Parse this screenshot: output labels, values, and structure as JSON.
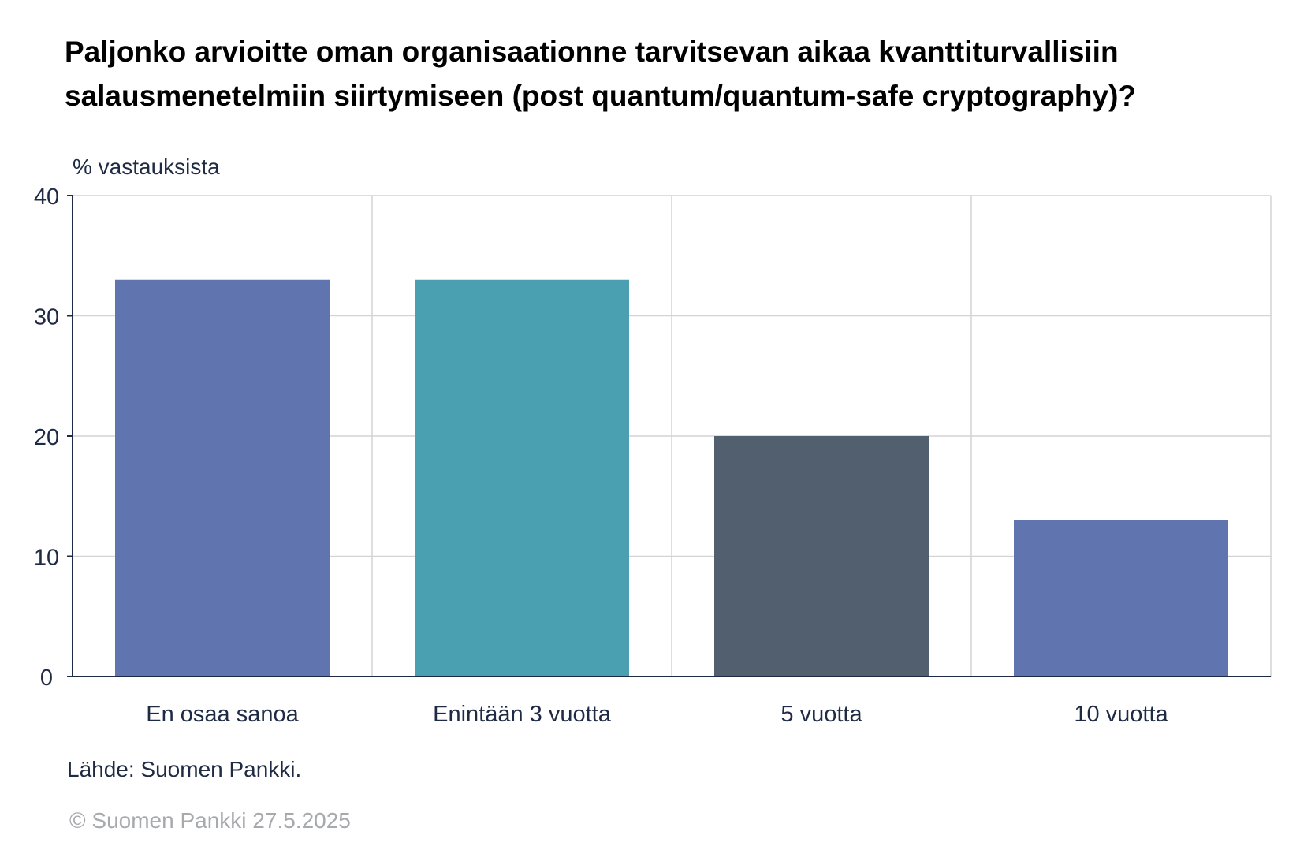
{
  "title_lines": [
    "Paljonko arvioitte oman organisaationne tarvitsevan aikaa kvanttiturvallisiin",
    "salausmenetelmiin siirtymiseen (post quantum/quantum-safe cryptography)?"
  ],
  "unit_label": "% vastauksista",
  "source": "Lähde: Suomen Pankki.",
  "copyright": "© Suomen Pankki 27.5.2025",
  "chart_data": {
    "type": "bar",
    "title": "Paljonko arvioitte oman organisaationne tarvitsevan aikaa kvanttiturvallisiin salausmenetelmiin siirtymiseen (post quantum/quantum-safe cryptography)?",
    "ylabel": "% vastauksista",
    "xlabel": "",
    "categories": [
      "En osaa sanoa",
      "Enintään 3 vuotta",
      "5 vuotta",
      "10 vuotta"
    ],
    "values": [
      33,
      33,
      20,
      13
    ],
    "bar_colors": [
      "#6074af",
      "#4aa0b1",
      "#525f6e",
      "#6074af"
    ],
    "ylim": [
      0,
      40
    ],
    "yticks": [
      0,
      10,
      20,
      30,
      40
    ],
    "grid": true,
    "legend": false
  }
}
